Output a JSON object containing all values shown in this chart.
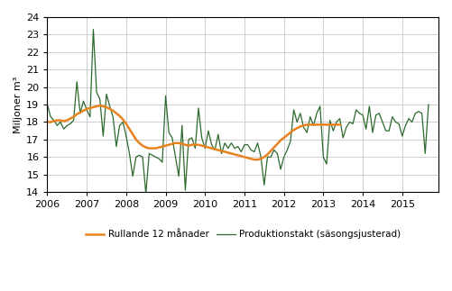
{
  "ylabel": "Miljoner m³",
  "ylim": [
    14,
    24
  ],
  "yticks": [
    14,
    15,
    16,
    17,
    18,
    19,
    20,
    21,
    22,
    23,
    24
  ],
  "xlim_start": 2006.0,
  "xlim_end": 2015.92,
  "xtick_years": [
    2006,
    2007,
    2008,
    2009,
    2010,
    2011,
    2012,
    2013,
    2014,
    2015
  ],
  "legend1": "Rullande 12 månader",
  "legend2": "Produktionstakt (säsongsjusterad)",
  "color_rolling": "#E8821E",
  "color_seasonal": "#2D6A2D",
  "rolling_12_start": 2006.0,
  "rolling_12": [
    18.0,
    18.0,
    18.05,
    18.1,
    18.1,
    18.05,
    18.1,
    18.2,
    18.3,
    18.45,
    18.55,
    18.65,
    18.75,
    18.8,
    18.85,
    18.9,
    18.95,
    18.9,
    18.85,
    18.75,
    18.65,
    18.5,
    18.35,
    18.15,
    17.9,
    17.6,
    17.3,
    17.0,
    16.8,
    16.65,
    16.55,
    16.5,
    16.5,
    16.5,
    16.55,
    16.6,
    16.65,
    16.7,
    16.75,
    16.8,
    16.8,
    16.75,
    16.7,
    16.65,
    16.7,
    16.7,
    16.7,
    16.65,
    16.6,
    16.55,
    16.5,
    16.45,
    16.4,
    16.35,
    16.3,
    16.25,
    16.2,
    16.15,
    16.1,
    16.05,
    16.0,
    15.95,
    15.9,
    15.85,
    15.85,
    15.9,
    16.0,
    16.15,
    16.35,
    16.55,
    16.75,
    16.95,
    17.1,
    17.25,
    17.4,
    17.55,
    17.65,
    17.75,
    17.8,
    17.85,
    17.85,
    17.85,
    17.85,
    17.85,
    17.85,
    17.85,
    17.85,
    17.85,
    17.85,
    17.85
  ],
  "seasonal_start": 2006.0,
  "seasonal": [
    19.0,
    18.3,
    18.1,
    17.8,
    18.0,
    17.6,
    17.8,
    17.9,
    18.1,
    20.3,
    18.5,
    19.2,
    18.7,
    18.3,
    23.3,
    19.7,
    19.3,
    17.2,
    19.6,
    18.9,
    18.3,
    16.6,
    17.8,
    18.0,
    17.2,
    16.2,
    14.9,
    16.0,
    16.1,
    16.0,
    13.9,
    16.2,
    16.1,
    16.0,
    15.9,
    15.7,
    19.5,
    17.4,
    17.1,
    16.0,
    14.9,
    17.8,
    14.1,
    17.0,
    17.1,
    16.5,
    18.8,
    17.1,
    16.5,
    17.5,
    16.7,
    16.4,
    17.3,
    16.2,
    16.8,
    16.5,
    16.8,
    16.5,
    16.6,
    16.3,
    16.7,
    16.7,
    16.4,
    16.3,
    16.8,
    16.0,
    14.4,
    16.0,
    16.0,
    16.4,
    16.2,
    15.3,
    16.0,
    16.4,
    16.9,
    18.7,
    18.0,
    18.5,
    17.7,
    17.4,
    18.3,
    17.8,
    18.5,
    18.9,
    16.0,
    15.6,
    18.1,
    17.5,
    18.0,
    18.2,
    17.1,
    17.7,
    18.0,
    17.9,
    18.7,
    18.5,
    18.4,
    17.6,
    18.9,
    17.4,
    18.4,
    18.5,
    18.0,
    17.5,
    17.5,
    18.3,
    18.0,
    17.9,
    17.2,
    17.8,
    18.2,
    18.0,
    18.5,
    18.6,
    18.5,
    16.2,
    19.0
  ]
}
